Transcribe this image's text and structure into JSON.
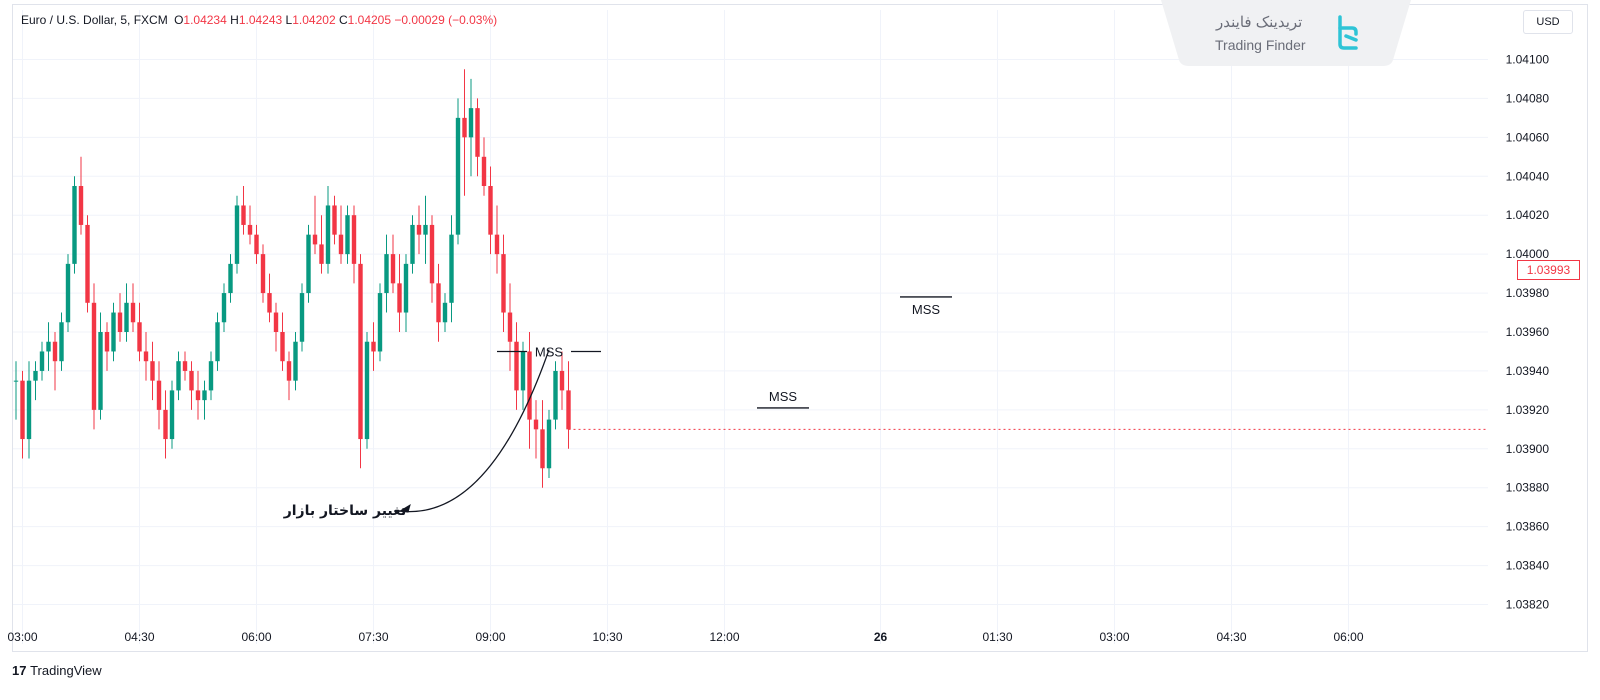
{
  "legend": {
    "title": "Euro / U.S. Dollar, 5, FXCM",
    "o_label": "O",
    "o": "1.04234",
    "h_label": "H",
    "h": "1.04243",
    "l_label": "L",
    "l": "1.04202",
    "c_label": "C",
    "c": "1.04205",
    "change": "−0.00029 (−0.03%)"
  },
  "currency": "USD",
  "last_price_label": "1.03993",
  "watermark": {
    "fa": "تریدینک فایندر",
    "en": "Trading Finder"
  },
  "tradingview": {
    "mark": "17",
    "label": "TradingView"
  },
  "colors": {
    "up": "#089981",
    "down": "#f23645",
    "grid": "#f0f3fa",
    "axis_text": "#131722"
  },
  "chart_data": {
    "type": "candlestick",
    "y_ticks": [
      "1.04100",
      "1.04080",
      "1.04060",
      "1.04040",
      "1.04020",
      "1.04000",
      "1.03980",
      "1.03960",
      "1.03940",
      "1.03920",
      "1.03900",
      "1.03880",
      "1.03860",
      "1.03840",
      "1.03820"
    ],
    "ylim": [
      1.0381,
      1.0411
    ],
    "x_ticks": [
      {
        "label": "03:00",
        "bar": 1
      },
      {
        "label": "04:30",
        "bar": 19
      },
      {
        "label": "06:00",
        "bar": 37
      },
      {
        "label": "07:30",
        "bar": 55
      },
      {
        "label": "09:00",
        "bar": 73
      },
      {
        "label": "10:30",
        "bar": 91
      },
      {
        "label": "12:00",
        "bar": 109
      },
      {
        "label": "26",
        "bar": 133,
        "bold": true
      },
      {
        "label": "01:30",
        "bar": 151
      },
      {
        "label": "03:00",
        "bar": 169
      },
      {
        "label": "04:30",
        "bar": 187
      },
      {
        "label": "06:00",
        "bar": 205
      }
    ],
    "annotations": [
      {
        "text": "MSS",
        "bar_from": 74,
        "bar_to": 90,
        "price": 1.0395
      },
      {
        "text": "MSS",
        "bar_from": 114,
        "bar_to": 122,
        "price": 1.03921
      },
      {
        "text": "MSS",
        "bar_from": 136,
        "bar_to": 144,
        "price": 1.03978
      },
      {
        "text": "تغییر ساختار بازار",
        "arrow_to_bar": 82,
        "arrow_to_price": 1.03954,
        "price": 1.03868
      }
    ],
    "ohlc": [
      [
        1.03935,
        1.03945,
        1.03915,
        1.03935
      ],
      [
        1.03935,
        1.0394,
        1.03895,
        1.03905
      ],
      [
        1.03905,
        1.03945,
        1.03895,
        1.03935
      ],
      [
        1.03935,
        1.03945,
        1.03925,
        1.0394
      ],
      [
        1.0394,
        1.03955,
        1.03935,
        1.0395
      ],
      [
        1.0395,
        1.03965,
        1.0394,
        1.03955
      ],
      [
        1.03955,
        1.0396,
        1.0393,
        1.03945
      ],
      [
        1.03945,
        1.0397,
        1.0394,
        1.03965
      ],
      [
        1.03965,
        1.04,
        1.0396,
        1.03995
      ],
      [
        1.03995,
        1.0404,
        1.0399,
        1.04035
      ],
      [
        1.04035,
        1.0405,
        1.0401,
        1.04015
      ],
      [
        1.04015,
        1.0402,
        1.0397,
        1.03975
      ],
      [
        1.03975,
        1.03985,
        1.0391,
        1.0392
      ],
      [
        1.0392,
        1.0397,
        1.03915,
        1.0396
      ],
      [
        1.0396,
        1.03965,
        1.0394,
        1.0395
      ],
      [
        1.0395,
        1.03975,
        1.03945,
        1.0397
      ],
      [
        1.0397,
        1.0398,
        1.03955,
        1.0396
      ],
      [
        1.0396,
        1.03985,
        1.03955,
        1.03975
      ],
      [
        1.03975,
        1.03985,
        1.0396,
        1.03965
      ],
      [
        1.03965,
        1.03975,
        1.03945,
        1.0395
      ],
      [
        1.0395,
        1.0396,
        1.03935,
        1.03945
      ],
      [
        1.03945,
        1.03955,
        1.03925,
        1.03935
      ],
      [
        1.03935,
        1.03945,
        1.0391,
        1.0392
      ],
      [
        1.0392,
        1.0393,
        1.03895,
        1.03905
      ],
      [
        1.03905,
        1.03935,
        1.039,
        1.0393
      ],
      [
        1.0393,
        1.0395,
        1.03925,
        1.03945
      ],
      [
        1.03945,
        1.0395,
        1.03935,
        1.0394
      ],
      [
        1.0394,
        1.03945,
        1.0392,
        1.0393
      ],
      [
        1.0393,
        1.0394,
        1.03915,
        1.03925
      ],
      [
        1.03925,
        1.03935,
        1.03915,
        1.0393
      ],
      [
        1.0393,
        1.0395,
        1.03925,
        1.03945
      ],
      [
        1.03945,
        1.0397,
        1.0394,
        1.03965
      ],
      [
        1.03965,
        1.03985,
        1.0396,
        1.0398
      ],
      [
        1.0398,
        1.04,
        1.03975,
        1.03995
      ],
      [
        1.03995,
        1.0403,
        1.0399,
        1.04025
      ],
      [
        1.04025,
        1.04035,
        1.0401,
        1.04015
      ],
      [
        1.04015,
        1.04025,
        1.04005,
        1.0401
      ],
      [
        1.0401,
        1.04015,
        1.03995,
        1.04
      ],
      [
        1.04,
        1.04005,
        1.03975,
        1.0398
      ],
      [
        1.0398,
        1.0399,
        1.03965,
        1.0397
      ],
      [
        1.0397,
        1.03975,
        1.0395,
        1.0396
      ],
      [
        1.0396,
        1.0397,
        1.0394,
        1.03945
      ],
      [
        1.03945,
        1.0395,
        1.03925,
        1.03935
      ],
      [
        1.03935,
        1.0396,
        1.0393,
        1.03955
      ],
      [
        1.03955,
        1.03985,
        1.0395,
        1.0398
      ],
      [
        1.0398,
        1.04015,
        1.03975,
        1.0401
      ],
      [
        1.0401,
        1.0403,
        1.04,
        1.04005
      ],
      [
        1.04005,
        1.0402,
        1.0399,
        1.03995
      ],
      [
        1.03995,
        1.04035,
        1.0399,
        1.04025
      ],
      [
        1.04025,
        1.0403,
        1.04005,
        1.0401
      ],
      [
        1.0401,
        1.04025,
        1.03995,
        1.04
      ],
      [
        1.04,
        1.04025,
        1.03995,
        1.0402
      ],
      [
        1.0402,
        1.04025,
        1.03985,
        1.03995
      ],
      [
        1.03995,
        1.04,
        1.0389,
        1.03905
      ],
      [
        1.03905,
        1.0396,
        1.039,
        1.03955
      ],
      [
        1.03955,
        1.03965,
        1.0394,
        1.0395
      ],
      [
        1.0395,
        1.03985,
        1.03945,
        1.0398
      ],
      [
        1.0398,
        1.0401,
        1.0397,
        1.04
      ],
      [
        1.04,
        1.0401,
        1.0398,
        1.03985
      ],
      [
        1.03985,
        1.04,
        1.0396,
        1.0397
      ],
      [
        1.0397,
        1.04,
        1.0396,
        1.03995
      ],
      [
        1.03995,
        1.0402,
        1.0399,
        1.04015
      ],
      [
        1.04015,
        1.04025,
        1.04,
        1.0401
      ],
      [
        1.0401,
        1.0403,
        1.03995,
        1.04015
      ],
      [
        1.04015,
        1.0402,
        1.03975,
        1.03985
      ],
      [
        1.03985,
        1.03995,
        1.03955,
        1.03965
      ],
      [
        1.03965,
        1.0398,
        1.0396,
        1.03975
      ],
      [
        1.03975,
        1.0402,
        1.03965,
        1.0401
      ],
      [
        1.0401,
        1.0408,
        1.04005,
        1.0407
      ],
      [
        1.0407,
        1.04095,
        1.0403,
        1.0406
      ],
      [
        1.0406,
        1.0409,
        1.0404,
        1.04075
      ],
      [
        1.04075,
        1.0408,
        1.0404,
        1.0405
      ],
      [
        1.0405,
        1.0406,
        1.0403,
        1.04035
      ],
      [
        1.04035,
        1.04045,
        1.04,
        1.0401
      ],
      [
        1.0401,
        1.04025,
        1.0399,
        1.04
      ],
      [
        1.04,
        1.0401,
        1.0396,
        1.0397
      ],
      [
        1.0397,
        1.03985,
        1.0394,
        1.03955
      ],
      [
        1.03955,
        1.03965,
        1.0392,
        1.0393
      ],
      [
        1.0393,
        1.03955,
        1.0392,
        1.0395
      ],
      [
        1.0395,
        1.0396,
        1.039,
        1.03915
      ],
      [
        1.03915,
        1.03925,
        1.03895,
        1.0391
      ],
      [
        1.0391,
        1.03925,
        1.0388,
        1.0389
      ],
      [
        1.0389,
        1.0392,
        1.03885,
        1.03915
      ],
      [
        1.03915,
        1.03945,
        1.0391,
        1.0394
      ],
      [
        1.0394,
        1.0395,
        1.0392,
        1.0393
      ],
      [
        1.0393,
        1.03945,
        1.039,
        1.0391
      ]
    ]
  }
}
